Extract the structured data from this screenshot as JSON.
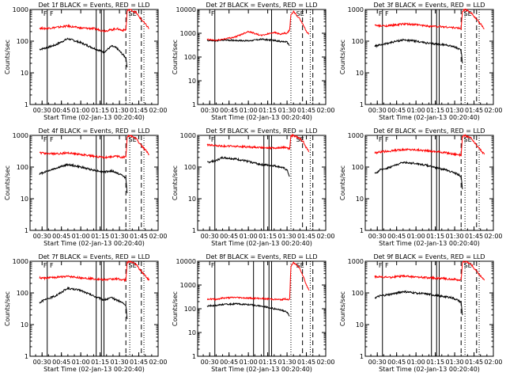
{
  "chart_data": [
    {
      "type": "line",
      "title": "Det 1f BLACK = Events, RED = LLD",
      "ylabel": "Counts/sec",
      "xlabel": "Start Time (02-Jan-13 00:20:40)",
      "yscale": "log",
      "ylim": [
        1,
        1000
      ],
      "xticks": [
        "00:30",
        "00:45",
        "01:00",
        "01:15",
        "01:30",
        "01:45",
        "02:00"
      ],
      "yticks": [
        "1",
        "10",
        "100",
        "1000"
      ],
      "annotations": [
        "F",
        "F",
        "SE"
      ],
      "series": [
        {
          "color": "#000000",
          "x_minutes": [
            28,
            32,
            40,
            50,
            60,
            70,
            78,
            84,
            88,
            92,
            95,
            96
          ],
          "values": [
            55,
            60,
            75,
            120,
            90,
            60,
            45,
            70,
            60,
            40,
            30,
            15
          ]
        },
        {
          "color": "#ff0000",
          "x_minutes": [
            28,
            32,
            40,
            50,
            60,
            70,
            78,
            84,
            88,
            92,
            95,
            96,
            98,
            103,
            105,
            110,
            113
          ],
          "values": [
            260,
            250,
            270,
            300,
            260,
            250,
            210,
            230,
            250,
            220,
            230,
            900,
            1000,
            800,
            600,
            350,
            250
          ]
        }
      ],
      "vlines_solid": [
        34,
        72,
        76,
        78
      ],
      "vlines_dashed": [
        95,
        107
      ],
      "vlines_dotted": [
        98,
        109
      ]
    },
    {
      "type": "line",
      "title": "Det 2f BLACK = Events, RED = LLD",
      "ylabel": "Counts/sec",
      "xlabel": "Start Time (02-Jan-13 00:20:40)",
      "yscale": "log",
      "ylim": [
        1,
        10000
      ],
      "xticks": [
        "00:30",
        "00:45",
        "01:00",
        "01:15",
        "01:30",
        "01:45",
        "02:00"
      ],
      "yticks": [
        "1",
        "10",
        "100",
        "1000",
        "10000"
      ],
      "annotations": [
        "F",
        "SE"
      ],
      "series": [
        {
          "color": "#000000",
          "x_minutes": [
            28,
            35,
            40,
            50,
            60,
            70,
            80,
            85,
            88,
            90,
            92
          ],
          "values": [
            500,
            480,
            520,
            500,
            480,
            560,
            500,
            450,
            440,
            420,
            300
          ]
        },
        {
          "color": "#ff0000",
          "x_minutes": [
            28,
            35,
            40,
            50,
            60,
            70,
            80,
            85,
            88,
            90,
            92,
            93,
            95,
            100,
            103,
            105,
            107
          ],
          "values": [
            550,
            500,
            560,
            700,
            1200,
            800,
            1100,
            900,
            1000,
            950,
            1400,
            6000,
            8000,
            4000,
            2000,
            1200,
            900
          ]
        }
      ],
      "vlines_solid": [
        34,
        78
      ],
      "vlines_dashed": [
        102,
        110
      ],
      "vlines_dotted": [
        93,
        108
      ]
    },
    {
      "type": "line",
      "title": "Det 3f BLACK = Events, RED = LLD",
      "ylabel": "Counts/sec",
      "xlabel": "Start Time (02-Jan-13 00:20:40)",
      "yscale": "log",
      "ylim": [
        1,
        1000
      ],
      "xticks": [
        "00:30",
        "00:45",
        "01:00",
        "01:15",
        "01:30",
        "01:45",
        "02:00"
      ],
      "yticks": [
        "1",
        "10",
        "100",
        "1000"
      ],
      "annotations": [
        "F",
        "F",
        "SE"
      ],
      "series": [
        {
          "color": "#000000",
          "x_minutes": [
            28,
            32,
            40,
            50,
            60,
            70,
            78,
            84,
            88,
            92,
            95,
            96
          ],
          "values": [
            70,
            75,
            90,
            110,
            100,
            85,
            80,
            75,
            70,
            60,
            50,
            20
          ]
        },
        {
          "color": "#ff0000",
          "x_minutes": [
            28,
            32,
            40,
            50,
            60,
            70,
            78,
            84,
            88,
            92,
            95,
            96,
            98,
            103,
            105,
            110,
            113
          ],
          "values": [
            320,
            300,
            310,
            350,
            330,
            300,
            290,
            280,
            270,
            260,
            250,
            900,
            1000,
            800,
            600,
            350,
            250
          ]
        }
      ],
      "vlines_solid": [
        34,
        72,
        76,
        78
      ],
      "vlines_dashed": [
        95,
        107
      ],
      "vlines_dotted": [
        98,
        109
      ]
    },
    {
      "type": "line",
      "title": "Det 4f BLACK = Events, RED = LLD",
      "ylabel": "Counts/sec",
      "xlabel": "Start Time (02-Jan-13 00:20:40)",
      "yscale": "log",
      "ylim": [
        1,
        1000
      ],
      "xticks": [
        "00:30",
        "00:45",
        "01:00",
        "01:15",
        "01:30",
        "01:45",
        "02:00"
      ],
      "yticks": [
        "1",
        "10",
        "100",
        "1000"
      ],
      "annotations": [
        "F",
        "F",
        "SE"
      ],
      "series": [
        {
          "color": "#000000",
          "x_minutes": [
            28,
            32,
            40,
            50,
            60,
            70,
            78,
            84,
            88,
            92,
            95,
            96
          ],
          "values": [
            60,
            70,
            90,
            120,
            100,
            80,
            70,
            75,
            65,
            55,
            45,
            15
          ]
        },
        {
          "color": "#ff0000",
          "x_minutes": [
            28,
            32,
            40,
            50,
            60,
            70,
            78,
            84,
            88,
            92,
            95,
            96,
            98,
            103,
            105,
            110,
            113
          ],
          "values": [
            280,
            270,
            260,
            280,
            250,
            220,
            200,
            210,
            220,
            200,
            210,
            900,
            1000,
            800,
            600,
            350,
            250
          ]
        }
      ],
      "vlines_solid": [
        34,
        72,
        76,
        78
      ],
      "vlines_dashed": [
        95,
        107
      ],
      "vlines_dotted": [
        98,
        109
      ]
    },
    {
      "type": "line",
      "title": "Det 5f BLACK = Events, RED = LLD",
      "ylabel": "Counts/sec",
      "xlabel": "Start Time (02-Jan-13 00:20:40)",
      "yscale": "log",
      "ylim": [
        1,
        1000
      ],
      "xticks": [
        "00:30",
        "00:45",
        "01:00",
        "01:15",
        "01:30",
        "01:45",
        "02:00"
      ],
      "yticks": [
        "1",
        "10",
        "100",
        "1000"
      ],
      "annotations": [
        "F",
        "SE"
      ],
      "series": [
        {
          "color": "#000000",
          "x_minutes": [
            28,
            35,
            40,
            50,
            60,
            70,
            80,
            85,
            88,
            90,
            92
          ],
          "values": [
            140,
            160,
            200,
            180,
            150,
            120,
            110,
            100,
            90,
            80,
            50
          ]
        },
        {
          "color": "#ff0000",
          "x_minutes": [
            28,
            35,
            40,
            50,
            60,
            70,
            80,
            85,
            88,
            90,
            92,
            93,
            95,
            100,
            103,
            105,
            107
          ],
          "values": [
            500,
            480,
            460,
            450,
            430,
            420,
            400,
            410,
            420,
            400,
            380,
            950,
            1000,
            800,
            600,
            400,
            300
          ]
        }
      ],
      "vlines_solid": [
        34,
        72,
        76,
        78
      ],
      "vlines_dashed": [
        102,
        110
      ],
      "vlines_dotted": [
        93,
        108
      ]
    },
    {
      "type": "line",
      "title": "Det 6f BLACK = Events, RED = LLD",
      "ylabel": "Counts/sec",
      "xlabel": "Start Time (02-Jan-13 00:20:40)",
      "yscale": "log",
      "ylim": [
        1,
        1000
      ],
      "xticks": [
        "00:30",
        "00:45",
        "01:00",
        "01:15",
        "01:30",
        "01:45",
        "02:00"
      ],
      "yticks": [
        "1",
        "10",
        "100",
        "1000"
      ],
      "annotations": [
        "F",
        "F",
        "SE"
      ],
      "series": [
        {
          "color": "#000000",
          "x_minutes": [
            28,
            32,
            40,
            50,
            60,
            70,
            78,
            84,
            88,
            92,
            95,
            96
          ],
          "values": [
            60,
            80,
            100,
            140,
            130,
            110,
            90,
            80,
            70,
            60,
            50,
            20
          ]
        },
        {
          "color": "#ff0000",
          "x_minutes": [
            28,
            32,
            40,
            50,
            60,
            70,
            78,
            84,
            88,
            92,
            95,
            96,
            98,
            103,
            105,
            110,
            113
          ],
          "values": [
            280,
            300,
            320,
            360,
            350,
            320,
            300,
            280,
            260,
            250,
            240,
            900,
            1000,
            800,
            600,
            350,
            250
          ]
        }
      ],
      "vlines_solid": [
        34,
        72,
        76,
        78
      ],
      "vlines_dashed": [
        95,
        107
      ],
      "vlines_dotted": [
        98,
        109
      ]
    },
    {
      "type": "line",
      "title": "Det 7f BLACK = Events, RED = LLD",
      "ylabel": "Counts/sec",
      "xlabel": "Start Time (02-Jan-13 00:20:40)",
      "yscale": "log",
      "ylim": [
        1,
        1000
      ],
      "xticks": [
        "00:30",
        "00:45",
        "01:00",
        "01:15",
        "01:30",
        "01:45",
        "02:00"
      ],
      "yticks": [
        "1",
        "10",
        "100",
        "1000"
      ],
      "annotations": [
        "F",
        "F",
        "SE"
      ],
      "series": [
        {
          "color": "#000000",
          "x_minutes": [
            28,
            32,
            40,
            50,
            60,
            70,
            78,
            84,
            88,
            92,
            95,
            96
          ],
          "values": [
            50,
            60,
            80,
            140,
            120,
            80,
            60,
            70,
            60,
            50,
            40,
            15
          ]
        },
        {
          "color": "#ff0000",
          "x_minutes": [
            28,
            32,
            40,
            50,
            60,
            70,
            78,
            84,
            88,
            92,
            95,
            96,
            98,
            103,
            105,
            110,
            113
          ],
          "values": [
            300,
            290,
            310,
            330,
            300,
            280,
            260,
            270,
            280,
            260,
            250,
            900,
            1000,
            800,
            600,
            350,
            250
          ]
        }
      ],
      "vlines_solid": [
        34,
        72,
        76,
        78
      ],
      "vlines_dashed": [
        95,
        107
      ],
      "vlines_dotted": [
        98,
        109
      ]
    },
    {
      "type": "line",
      "title": "Det 8f BLACK = Events, RED = LLD",
      "ylabel": "Counts/sec",
      "xlabel": "Start Time (02-Jan-13 00:20:40)",
      "yscale": "log",
      "ylim": [
        1,
        10000
      ],
      "xticks": [
        "00:30",
        "00:45",
        "01:00",
        "01:15",
        "01:30",
        "01:45",
        "02:00"
      ],
      "yticks": [
        "1",
        "10",
        "100",
        "1000",
        "10000"
      ],
      "annotations": [
        "F",
        "SE"
      ],
      "series": [
        {
          "color": "#000000",
          "x_minutes": [
            28,
            35,
            40,
            50,
            60,
            70,
            80,
            85,
            88,
            90,
            92
          ],
          "values": [
            130,
            140,
            150,
            160,
            150,
            130,
            100,
            90,
            80,
            70,
            50
          ]
        },
        {
          "color": "#ff0000",
          "x_minutes": [
            28,
            35,
            40,
            50,
            60,
            70,
            80,
            85,
            88,
            90,
            92,
            93,
            95,
            100,
            103,
            105,
            107
          ],
          "values": [
            260,
            250,
            280,
            300,
            280,
            270,
            250,
            240,
            260,
            250,
            240,
            6000,
            9000,
            5000,
            2000,
            1000,
            600
          ]
        }
      ],
      "vlines_solid": [
        34,
        64,
        72,
        76,
        78
      ],
      "vlines_dashed": [
        102,
        110
      ],
      "vlines_dotted": [
        93,
        108
      ]
    },
    {
      "type": "line",
      "title": "Det 9f BLACK = Events, RED = LLD",
      "ylabel": "Counts/sec",
      "xlabel": "Start Time (02-Jan-13 00:20:40)",
      "yscale": "log",
      "ylim": [
        1,
        1000
      ],
      "xticks": [
        "00:30",
        "00:45",
        "01:00",
        "01:15",
        "01:30",
        "01:45",
        "02:00"
      ],
      "yticks": [
        "1",
        "10",
        "100",
        "1000"
      ],
      "annotations": [
        "F",
        "F",
        "SE"
      ],
      "series": [
        {
          "color": "#000000",
          "x_minutes": [
            28,
            32,
            40,
            50,
            60,
            70,
            78,
            84,
            88,
            92,
            95,
            96
          ],
          "values": [
            70,
            80,
            90,
            110,
            100,
            90,
            80,
            75,
            70,
            60,
            50,
            20
          ]
        },
        {
          "color": "#ff0000",
          "x_minutes": [
            28,
            32,
            40,
            50,
            60,
            70,
            78,
            84,
            88,
            92,
            95,
            96,
            98,
            103,
            105,
            110,
            113
          ],
          "values": [
            330,
            320,
            310,
            340,
            320,
            300,
            290,
            280,
            270,
            260,
            250,
            900,
            1000,
            800,
            600,
            350,
            250
          ]
        }
      ],
      "vlines_solid": [
        34,
        72,
        76,
        78
      ],
      "vlines_dashed": [
        95,
        107
      ],
      "vlines_dotted": [
        98,
        109
      ]
    }
  ]
}
